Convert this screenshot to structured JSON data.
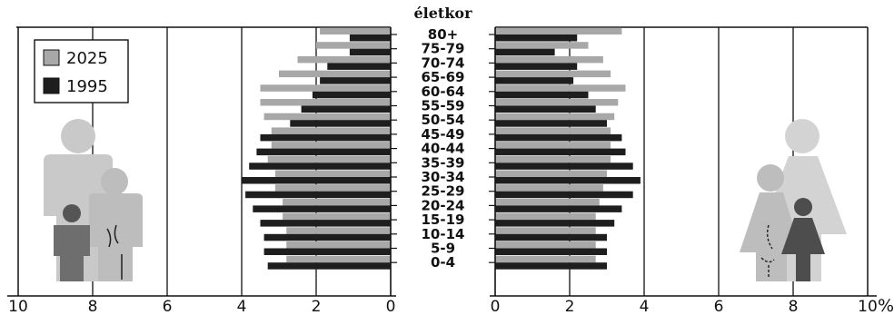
{
  "chart_data": {
    "type": "bar",
    "orientation": "horizontal",
    "layout": "population-pyramid",
    "title": "életkor",
    "unit": "%",
    "categories": [
      "80+",
      "75-79",
      "70-74",
      "65-69",
      "60-64",
      "55-59",
      "50-54",
      "45-49",
      "40-44",
      "35-39",
      "30-34",
      "25-29",
      "20-24",
      "15-19",
      "10-14",
      "5-9",
      "0-4"
    ],
    "left_ticks": [
      "10",
      "8",
      "6",
      "4",
      "2",
      "0"
    ],
    "right_ticks": [
      "0",
      "2",
      "4",
      "6",
      "8",
      "10"
    ],
    "xlim": [
      0,
      10
    ],
    "grid": true,
    "legend_position": "top-left",
    "series": [
      {
        "name": "2025",
        "color": "#a8a8a8",
        "left_values": [
          1.9,
          2.0,
          2.5,
          3.0,
          3.5,
          3.5,
          3.4,
          3.2,
          3.2,
          3.3,
          3.1,
          3.1,
          2.9,
          2.9,
          2.8,
          2.8,
          2.8
        ],
        "right_values": [
          3.4,
          2.5,
          2.9,
          3.1,
          3.5,
          3.3,
          3.2,
          3.1,
          3.1,
          3.1,
          3.0,
          2.9,
          2.8,
          2.7,
          2.7,
          2.7,
          2.7
        ]
      },
      {
        "name": "1995",
        "color": "#1e1e1e",
        "left_values": [
          1.1,
          1.1,
          1.7,
          1.9,
          2.1,
          2.4,
          2.7,
          3.5,
          3.6,
          3.8,
          4.0,
          3.9,
          3.7,
          3.5,
          3.4,
          3.4,
          3.3
        ],
        "right_values": [
          2.2,
          1.6,
          2.2,
          2.1,
          2.5,
          2.7,
          3.0,
          3.4,
          3.5,
          3.7,
          3.9,
          3.7,
          3.4,
          3.2,
          3.0,
          3.0,
          3.0
        ]
      }
    ]
  },
  "icons": {
    "left": "male-family-icon",
    "right": "female-family-icon"
  }
}
